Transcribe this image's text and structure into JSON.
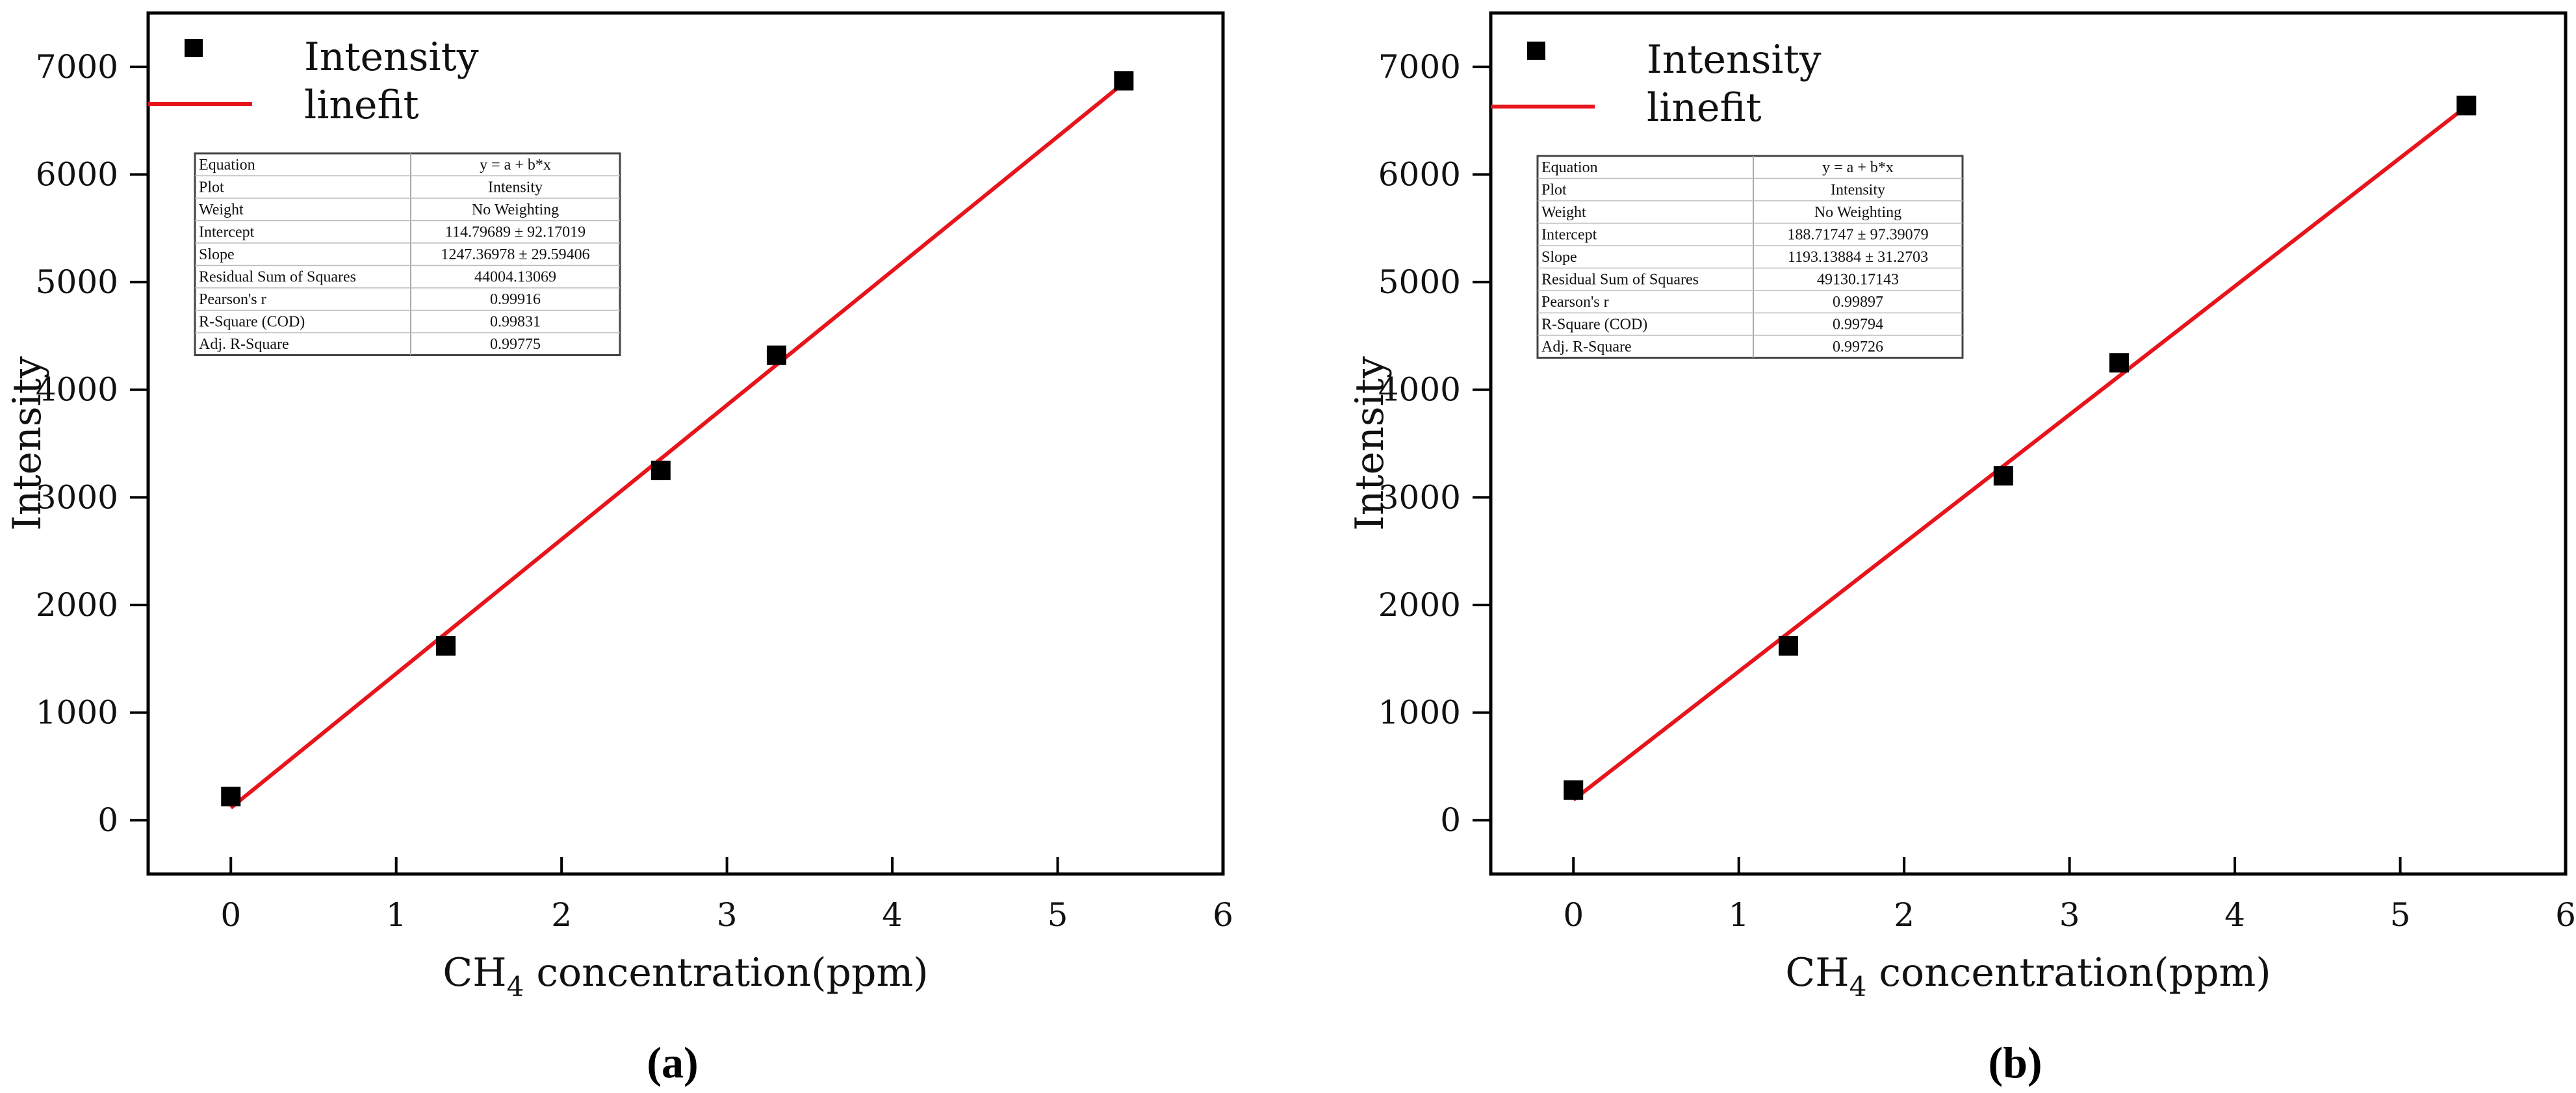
{
  "chart_data": [
    {
      "type": "scatter",
      "panel_label": "(a)",
      "xlabel": {
        "base": "CH",
        "sub": "4",
        "rest": " concentration(ppm)"
      },
      "ylabel": "Intensity",
      "xlim": [
        -0.5,
        6
      ],
      "ylim": [
        -500,
        7500
      ],
      "xticks": [
        0,
        1,
        2,
        3,
        4,
        5,
        6
      ],
      "yticks": [
        0,
        1000,
        2000,
        3000,
        4000,
        5000,
        6000,
        7000
      ],
      "grid": false,
      "legend_placement": "top-left",
      "colors": {
        "points": "#000000",
        "fit": "#e8141c"
      },
      "series": [
        {
          "name": "Intensity",
          "kind": "points",
          "x": [
            0,
            1.3,
            2.6,
            3.3,
            5.4
          ],
          "y": [
            220,
            1620,
            3250,
            4320,
            6870
          ]
        },
        {
          "name": "linefit",
          "kind": "line",
          "intercept": 114.79689,
          "slope": 1247.36978,
          "x_range": [
            0,
            5.4
          ]
        }
      ],
      "fit_table": [
        [
          "Equation",
          "y = a + b*x"
        ],
        [
          "Plot",
          "Intensity"
        ],
        [
          "Weight",
          "No Weighting"
        ],
        [
          "Intercept",
          "114.79689 ± 92.17019"
        ],
        [
          "Slope",
          "1247.36978 ± 29.59406"
        ],
        [
          "Residual Sum of Squares",
          "44004.13069"
        ],
        [
          "Pearson's r",
          "0.99916"
        ],
        [
          "R-Square (COD)",
          "0.99831"
        ],
        [
          "Adj. R-Square",
          "0.99775"
        ]
      ]
    },
    {
      "type": "scatter",
      "panel_label": "(b)",
      "xlabel": {
        "base": "CH",
        "sub": "4",
        "rest": " concentration(ppm)"
      },
      "ylabel": "Intensity",
      "xlim": [
        -0.5,
        6
      ],
      "ylim": [
        -500,
        7500
      ],
      "xticks": [
        0,
        1,
        2,
        3,
        4,
        5,
        6
      ],
      "yticks": [
        0,
        1000,
        2000,
        3000,
        4000,
        5000,
        6000,
        7000
      ],
      "grid": false,
      "legend_placement": "top-left",
      "colors": {
        "points": "#000000",
        "fit": "#e8141c"
      },
      "series": [
        {
          "name": "Intensity",
          "kind": "points",
          "x": [
            0,
            1.3,
            2.6,
            3.3,
            5.4
          ],
          "y": [
            280,
            1620,
            3200,
            4250,
            6640
          ]
        },
        {
          "name": "linefit",
          "kind": "line",
          "intercept": 188.71747,
          "slope": 1193.13884,
          "x_range": [
            0,
            5.4
          ]
        }
      ],
      "fit_table": [
        [
          "Equation",
          "y = a + b*x"
        ],
        [
          "Plot",
          "Intensity"
        ],
        [
          "Weight",
          "No Weighting"
        ],
        [
          "Intercept",
          "188.71747 ± 97.39079"
        ],
        [
          "Slope",
          "1193.13884 ± 31.2703"
        ],
        [
          "Residual Sum of Squares",
          "49130.17143"
        ],
        [
          "Pearson's r",
          "0.99897"
        ],
        [
          "R-Square (COD)",
          "0.99794"
        ],
        [
          "Adj. R-Square",
          "0.99726"
        ]
      ]
    }
  ]
}
